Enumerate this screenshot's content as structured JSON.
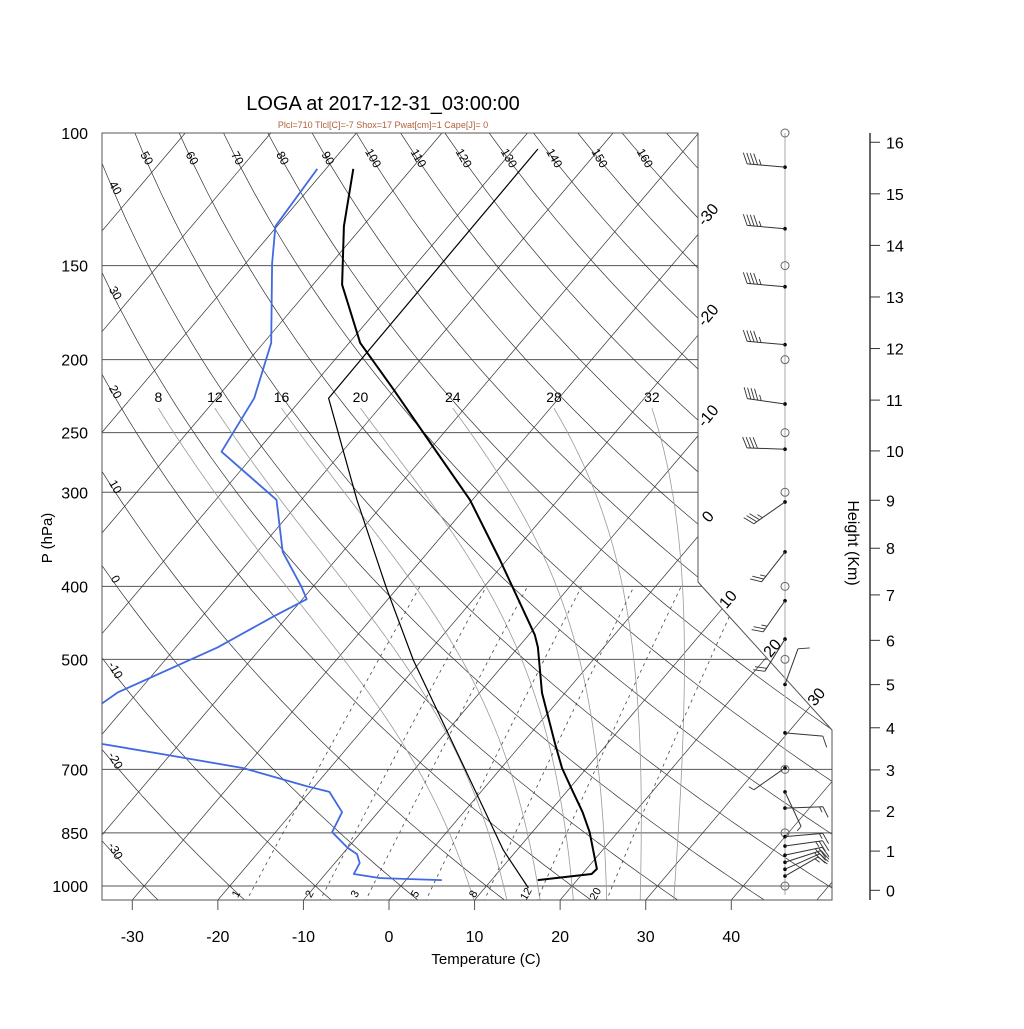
{
  "chart_data": {
    "type": "skew-t",
    "title": "LOGA at 2017-12-31_03:00:00",
    "subtitle": "Plcl=710 Tlcl[C]=-7 Shox=17 Pwat[cm]=1 Cape[J]= 0",
    "xlabel": "Temperature (C)",
    "ylabel": "P (hPa)",
    "y2label": "Height (Km)",
    "xticks": [
      -30,
      -20,
      -10,
      0,
      10,
      20,
      30,
      40
    ],
    "pressure_ticks": [
      100,
      150,
      200,
      250,
      300,
      400,
      500,
      700,
      850,
      1000
    ],
    "height_ticks_km": [
      0,
      1,
      2,
      3,
      4,
      5,
      6,
      7,
      8,
      9,
      10,
      11,
      12,
      13,
      14,
      15,
      16
    ],
    "isotherm_labels": [
      -30,
      -20,
      -10,
      0,
      10,
      20,
      30
    ],
    "dry_adiabat_labels_top": [
      50,
      60,
      70,
      80,
      90,
      100,
      110,
      120,
      130,
      140,
      150,
      160
    ],
    "dry_adiabat_labels_left": [
      40,
      30,
      20,
      10,
      0,
      -10,
      -20,
      -30
    ],
    "moist_adiabat_labels": [
      8,
      12,
      16,
      20,
      24,
      28,
      32
    ],
    "mixing_ratio_labels": [
      1,
      2,
      3,
      5,
      8,
      12,
      20
    ],
    "colors": {
      "temperature": "#000000",
      "dewpoint": "#4169e1",
      "parcel": "#000000",
      "subtitle": "#b0603a",
      "grid": "#333333"
    },
    "temperature": [
      [
        982,
        15.4
      ],
      [
        964,
        21.1
      ],
      [
        949,
        21.2
      ],
      [
        848,
        16.7
      ],
      [
        798,
        13.9
      ],
      [
        746,
        10.5
      ],
      [
        697,
        7.1
      ],
      [
        646,
        3.8
      ],
      [
        554,
        -2.7
      ],
      [
        482,
        -7.7
      ],
      [
        464,
        -9.3
      ],
      [
        369,
        -20.8
      ],
      [
        307,
        -30.3
      ],
      [
        260,
        -40.1
      ],
      [
        219,
        -50.2
      ],
      [
        190,
        -58.7
      ],
      [
        159,
        -66.6
      ],
      [
        133,
        -72.2
      ],
      [
        111.6,
        -76.8
      ]
    ],
    "dewpoint": [
      [
        982,
        4.2
      ],
      [
        976,
        -3.2
      ],
      [
        964,
        -6.7
      ],
      [
        932,
        -7.1
      ],
      [
        907,
        -8.3
      ],
      [
        890,
        -10.0
      ],
      [
        848,
        -13.4
      ],
      [
        798,
        -14.2
      ],
      [
        750,
        -17.7
      ],
      [
        737,
        -20.9
      ],
      [
        697,
        -30.2
      ],
      [
        670,
        -40.3
      ],
      [
        648,
        -48.9
      ],
      [
        630,
        -55.0
      ],
      [
        571,
        -53.0
      ],
      [
        553,
        -52.3
      ],
      [
        482,
        -45.1
      ],
      [
        439,
        -41.7
      ],
      [
        416,
        -39.5
      ],
      [
        400,
        -41.4
      ],
      [
        360,
        -47.0
      ],
      [
        307,
        -52.9
      ],
      [
        265,
        -64.1
      ],
      [
        225,
        -65.6
      ],
      [
        190,
        -69.1
      ],
      [
        149,
        -76.9
      ],
      [
        133,
        -80.2
      ],
      [
        111.6,
        -81.0
      ]
    ],
    "parcel": [
      [
        1006,
        15.1
      ],
      [
        896,
        8.4
      ],
      [
        708,
        -3.5
      ],
      [
        501,
        -21.0
      ],
      [
        402,
        -31.3
      ],
      [
        307,
        -43.5
      ],
      [
        225,
        -56.9
      ],
      [
        105,
        -57.2
      ]
    ],
    "winds": [
      {
        "p": 111,
        "dir": 275,
        "spd": 45
      },
      {
        "p": 134,
        "dir": 275,
        "spd": 45
      },
      {
        "p": 160,
        "dir": 275,
        "spd": 45
      },
      {
        "p": 191,
        "dir": 275,
        "spd": 45
      },
      {
        "p": 229,
        "dir": 278,
        "spd": 45
      },
      {
        "p": 263,
        "dir": 272,
        "spd": 40
      },
      {
        "p": 309,
        "dir": 235,
        "spd": 35
      },
      {
        "p": 360,
        "dir": 218,
        "spd": 25
      },
      {
        "p": 418,
        "dir": 215,
        "spd": 25
      },
      {
        "p": 470,
        "dir": 212,
        "spd": 20
      },
      {
        "p": 540,
        "dir": 20,
        "spd": 10
      },
      {
        "p": 626,
        "dir": 95,
        "spd": 10
      },
      {
        "p": 697,
        "dir": 235,
        "spd": 5
      },
      {
        "p": 750,
        "dir": 155,
        "spd": 5
      },
      {
        "p": 788,
        "dir": 88,
        "spd": 15
      },
      {
        "p": 860,
        "dir": 85,
        "spd": 15
      },
      {
        "p": 885,
        "dir": 82,
        "spd": 25
      },
      {
        "p": 910,
        "dir": 78,
        "spd": 25
      },
      {
        "p": 930,
        "dir": 72,
        "spd": 25
      },
      {
        "p": 950,
        "dir": 66,
        "spd": 20
      },
      {
        "p": 970,
        "dir": 60,
        "spd": 15
      }
    ]
  }
}
